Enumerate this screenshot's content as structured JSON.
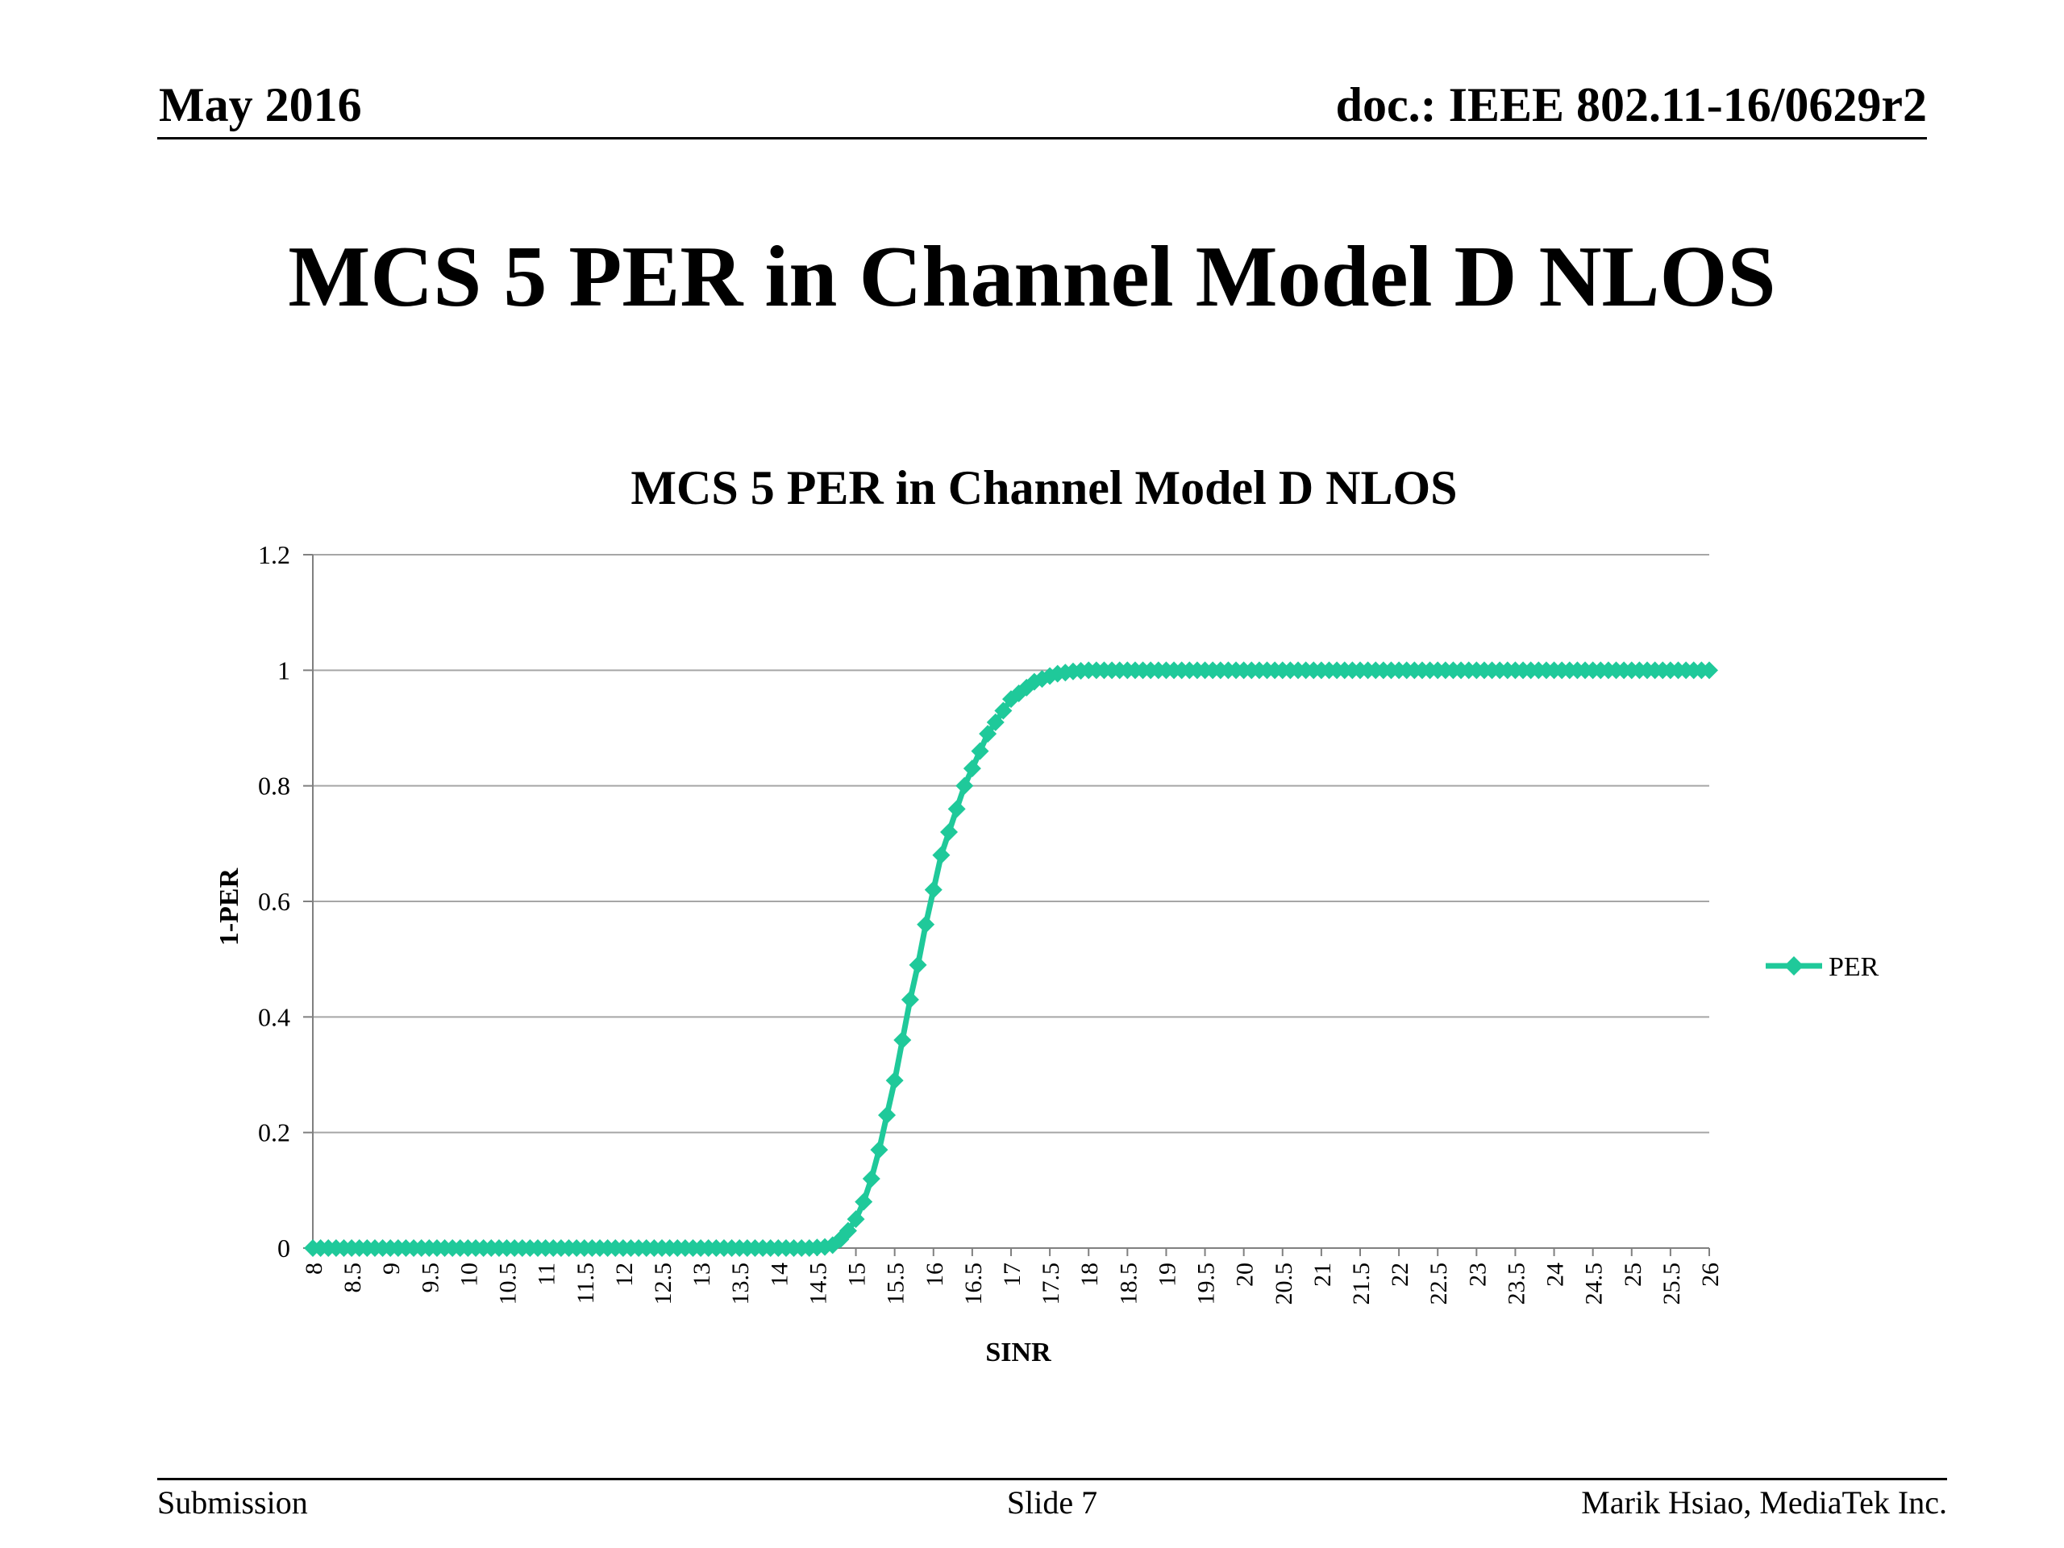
{
  "header": {
    "date": "May 2016",
    "doc": "doc.: IEEE 802.11-16/0629r2"
  },
  "slide_title": "MCS 5 PER in Channel Model D NLOS",
  "footer": {
    "left": "Submission",
    "center": "Slide 7",
    "right": "Marik Hsiao, MediaTek Inc."
  },
  "chart_data": {
    "type": "line",
    "title": "MCS 5 PER in Channel Model D NLOS",
    "xlabel": "SINR",
    "ylabel": "1-PER",
    "xlim": [
      8,
      26
    ],
    "ylim": [
      0,
      1.2
    ],
    "y_ticks": [
      "0",
      "0.2",
      "0.4",
      "0.6",
      "0.8",
      "1",
      "1.2"
    ],
    "x_ticks": [
      "8",
      "8.5",
      "9",
      "9.5",
      "10",
      "10.5",
      "11",
      "11.5",
      "12",
      "12.5",
      "13",
      "13.5",
      "14",
      "14.5",
      "15",
      "15.5",
      "16",
      "16.5",
      "17",
      "17.5",
      "18",
      "18.5",
      "19",
      "19.5",
      "20",
      "20.5",
      "21",
      "21.5",
      "22",
      "22.5",
      "23",
      "23.5",
      "24",
      "24.5",
      "25",
      "25.5",
      "26"
    ],
    "grid": true,
    "legend_position": "right",
    "color": "#1fc99a",
    "series": [
      {
        "name": "PER",
        "x": [
          8,
          8.1,
          8.2,
          8.3,
          8.4,
          8.5,
          8.6,
          8.7,
          8.8,
          8.9,
          9,
          9.1,
          9.2,
          9.3,
          9.4,
          9.5,
          9.6,
          9.7,
          9.8,
          9.9,
          10,
          10.1,
          10.2,
          10.3,
          10.4,
          10.5,
          10.6,
          10.7,
          10.8,
          10.9,
          11,
          11.1,
          11.2,
          11.3,
          11.4,
          11.5,
          11.6,
          11.7,
          11.8,
          11.9,
          12,
          12.1,
          12.2,
          12.3,
          12.4,
          12.5,
          12.6,
          12.7,
          12.8,
          12.9,
          13,
          13.1,
          13.2,
          13.3,
          13.4,
          13.5,
          13.6,
          13.7,
          13.8,
          13.9,
          14,
          14.1,
          14.2,
          14.3,
          14.4,
          14.5,
          14.6,
          14.7,
          14.8,
          14.9,
          15,
          15.1,
          15.2,
          15.3,
          15.4,
          15.5,
          15.6,
          15.7,
          15.8,
          15.9,
          16,
          16.1,
          16.2,
          16.3,
          16.4,
          16.5,
          16.6,
          16.7,
          16.8,
          16.9,
          17,
          17.1,
          17.2,
          17.3,
          17.4,
          17.5,
          17.6,
          17.7,
          17.8,
          17.9,
          18,
          18.1,
          18.2,
          18.3,
          18.4,
          18.5,
          18.6,
          18.7,
          18.8,
          18.9,
          19,
          19.1,
          19.2,
          19.3,
          19.4,
          19.5,
          19.6,
          19.7,
          19.8,
          19.9,
          20,
          20.1,
          20.2,
          20.3,
          20.4,
          20.5,
          20.6,
          20.7,
          20.8,
          20.9,
          21,
          21.1,
          21.2,
          21.3,
          21.4,
          21.5,
          21.6,
          21.7,
          21.8,
          21.9,
          22,
          22.1,
          22.2,
          22.3,
          22.4,
          22.5,
          22.6,
          22.7,
          22.8,
          22.9,
          23,
          23.1,
          23.2,
          23.3,
          23.4,
          23.5,
          23.6,
          23.7,
          23.8,
          23.9,
          24,
          24.1,
          24.2,
          24.3,
          24.4,
          24.5,
          24.6,
          24.7,
          24.8,
          24.9,
          25,
          25.1,
          25.2,
          25.3,
          25.4,
          25.5,
          25.6,
          25.7,
          25.8,
          25.9,
          26
        ],
        "values": [
          0,
          0,
          0,
          0,
          0,
          0,
          0,
          0,
          0,
          0,
          0,
          0,
          0,
          0,
          0,
          0,
          0,
          0,
          0,
          0,
          0,
          0,
          0,
          0,
          0,
          0,
          0,
          0,
          0,
          0,
          0,
          0,
          0,
          0,
          0,
          0,
          0,
          0,
          0,
          0,
          0,
          0,
          0,
          0,
          0,
          0,
          0,
          0,
          0,
          0,
          0,
          0,
          0,
          0,
          0,
          0,
          0,
          0,
          0,
          0,
          0,
          0,
          0,
          0,
          0,
          0.001,
          0.002,
          0.005,
          0.015,
          0.03,
          0.05,
          0.08,
          0.12,
          0.17,
          0.23,
          0.29,
          0.36,
          0.43,
          0.49,
          0.56,
          0.62,
          0.68,
          0.72,
          0.76,
          0.8,
          0.83,
          0.86,
          0.89,
          0.91,
          0.93,
          0.95,
          0.96,
          0.97,
          0.98,
          0.985,
          0.99,
          0.994,
          0.996,
          0.998,
          0.999,
          1,
          1,
          1,
          1,
          1,
          1,
          1,
          1,
          1,
          1,
          1,
          1,
          1,
          1,
          1,
          1,
          1,
          1,
          1,
          1,
          1,
          1,
          1,
          1,
          1,
          1,
          1,
          1,
          1,
          1,
          1,
          1,
          1,
          1,
          1,
          1,
          1,
          1,
          1,
          1,
          1,
          1,
          1,
          1,
          1,
          1,
          1,
          1,
          1,
          1,
          1,
          1,
          1,
          1,
          1,
          1,
          1,
          1,
          1,
          1,
          1,
          1,
          1,
          1,
          1,
          1,
          1,
          1,
          1,
          1,
          1,
          1,
          1,
          1,
          1,
          1,
          1,
          1,
          1,
          1,
          1
        ]
      }
    ]
  }
}
